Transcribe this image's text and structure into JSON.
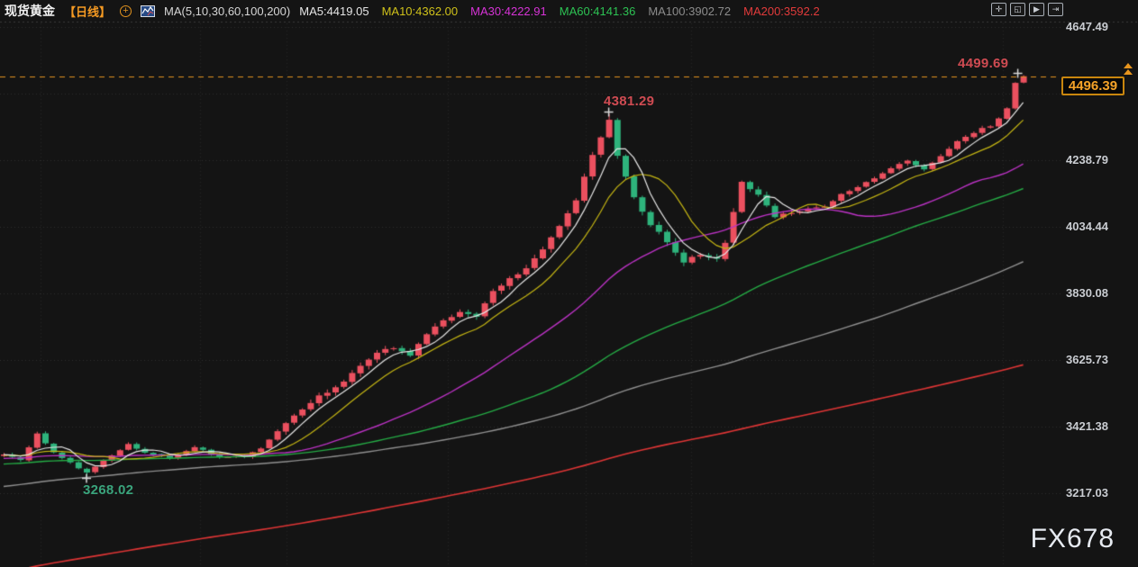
{
  "header": {
    "symbol": "现货黄金",
    "timeframe": "【日线】",
    "plus_glyph": "+",
    "ma_summary": "MA(5,10,30,60,100,200)",
    "ma_values": [
      {
        "label": "MA5:4419.05",
        "color": "#e6e6e6"
      },
      {
        "label": "MA10:4362.00",
        "color": "#cfc11a"
      },
      {
        "label": "MA30:4222.91",
        "color": "#d633d6"
      },
      {
        "label": "MA60:4141.36",
        "color": "#2dc253"
      },
      {
        "label": "MA100:3902.72",
        "color": "#8c8c8c"
      },
      {
        "label": "MA200:3592.2",
        "color": "#e23b3b"
      }
    ],
    "toolbar_icons": [
      {
        "name": "crosshair-tool",
        "glyph": "✛"
      },
      {
        "name": "fit-chart",
        "glyph": "◱"
      },
      {
        "name": "play-forward",
        "glyph": "▶"
      },
      {
        "name": "scroll-to-latest",
        "glyph": "⇥"
      }
    ]
  },
  "axis": {
    "ticks": [
      {
        "label": "4647.49",
        "price": 4647.49
      },
      {
        "label": "4238.79",
        "price": 4238.79
      },
      {
        "label": "4034.44",
        "price": 4034.44
      },
      {
        "label": "3830.08",
        "price": 3830.08
      },
      {
        "label": "3625.73",
        "price": 3625.73
      },
      {
        "label": "3421.38",
        "price": 3421.38
      },
      {
        "label": "3217.03",
        "price": 3217.03
      }
    ]
  },
  "price_box": {
    "value": "4496.39"
  },
  "annotations": {
    "high": {
      "text": "4499.69",
      "price": 4499.69,
      "candle_index": 123,
      "placement": "above",
      "color": "#cf4b52"
    },
    "peak": {
      "text": "4381.29",
      "price": 4381.29,
      "candle_index": 73,
      "placement": "above",
      "color": "#cf4b52"
    },
    "low": {
      "text": "3268.02",
      "price": 3268.02,
      "candle_index": 10,
      "placement": "below",
      "color": "#3aa47c"
    }
  },
  "watermark": "FX678",
  "chart_data": {
    "type": "candlestick",
    "title": "现货黄金 日线 (spot gold, daily)",
    "last_price": 4496.39,
    "session_high": 4499.69,
    "marked_peak": 4381.29,
    "marked_low": 3268.02,
    "ylim": [
      3170,
      4700
    ],
    "grid": "dotted",
    "legend_position": "top",
    "candle_count": 124,
    "close_keypoints": [
      [
        0,
        3338
      ],
      [
        2,
        3318
      ],
      [
        4,
        3398
      ],
      [
        6,
        3345
      ],
      [
        8,
        3310
      ],
      [
        10,
        3281
      ],
      [
        12,
        3318
      ],
      [
        15,
        3368
      ],
      [
        17,
        3340
      ],
      [
        20,
        3325
      ],
      [
        23,
        3358
      ],
      [
        26,
        3327
      ],
      [
        29,
        3330
      ],
      [
        31,
        3352
      ],
      [
        33,
        3408
      ],
      [
        35,
        3455
      ],
      [
        37,
        3498
      ],
      [
        39,
        3530
      ],
      [
        41,
        3562
      ],
      [
        43,
        3608
      ],
      [
        45,
        3648
      ],
      [
        47,
        3662
      ],
      [
        49,
        3642
      ],
      [
        51,
        3708
      ],
      [
        53,
        3752
      ],
      [
        55,
        3772
      ],
      [
        57,
        3758
      ],
      [
        59,
        3835
      ],
      [
        61,
        3872
      ],
      [
        63,
        3908
      ],
      [
        65,
        3962
      ],
      [
        67,
        4040
      ],
      [
        69,
        4112
      ],
      [
        71,
        4255
      ],
      [
        72,
        4310
      ],
      [
        73,
        4360
      ],
      [
        74,
        4248
      ],
      [
        75,
        4185
      ],
      [
        76,
        4120
      ],
      [
        78,
        4042
      ],
      [
        80,
        3988
      ],
      [
        82,
        3928
      ],
      [
        84,
        3952
      ],
      [
        86,
        3938
      ],
      [
        87,
        3990
      ],
      [
        88,
        4080
      ],
      [
        89,
        4172
      ],
      [
        91,
        4138
      ],
      [
        93,
        4062
      ],
      [
        95,
        4078
      ],
      [
        97,
        4088
      ],
      [
        99,
        4096
      ],
      [
        101,
        4135
      ],
      [
        103,
        4155
      ],
      [
        105,
        4185
      ],
      [
        107,
        4215
      ],
      [
        109,
        4240
      ],
      [
        111,
        4212
      ],
      [
        113,
        4250
      ],
      [
        115,
        4295
      ],
      [
        117,
        4325
      ],
      [
        119,
        4345
      ],
      [
        120,
        4370
      ],
      [
        121,
        4398
      ],
      [
        122,
        4476
      ],
      [
        123,
        4496.39
      ]
    ],
    "prehistory_keypoints": [
      [
        -200,
        2400
      ],
      [
        -90,
        3080
      ],
      [
        -50,
        3290
      ],
      [
        0,
        3338
      ]
    ],
    "noise_spans": [
      [
        32,
        5
      ],
      [
        73,
        9
      ],
      [
        95,
        10
      ],
      [
        120,
        6
      ],
      [
        200,
        0
      ]
    ],
    "specials": [
      {
        "index": 10,
        "field": "low",
        "price": 3268.02
      },
      {
        "index": 73,
        "field": "high",
        "price": 4381.29
      },
      {
        "index": 123,
        "field": "high",
        "price": 4499.69
      }
    ],
    "moving_averages": [
      {
        "period": 5,
        "value": 4419.05,
        "color": "#e6e6e6",
        "width": 1.2
      },
      {
        "period": 10,
        "value": 4362.0,
        "color": "#c4b513",
        "width": 1.2
      },
      {
        "period": 30,
        "value": 4222.91,
        "color": "#bb32c4",
        "width": 1.4
      },
      {
        "period": 60,
        "value": 4141.36,
        "color": "#25ab45",
        "width": 1.4
      },
      {
        "period": 100,
        "value": 3902.72,
        "color": "#909090",
        "width": 1.4
      },
      {
        "period": 200,
        "value": 3592.2,
        "color": "#de3535",
        "width": 1.6
      }
    ],
    "colors": {
      "up": "#eb505f",
      "down": "#2eb37c",
      "last_price_line": "#e0921f",
      "marker_cross": "#d8d8d8",
      "background": "#141414"
    },
    "vertical_gridline_xs": [
      45,
      222,
      318,
      497,
      650,
      767,
      969,
      1113
    ]
  }
}
